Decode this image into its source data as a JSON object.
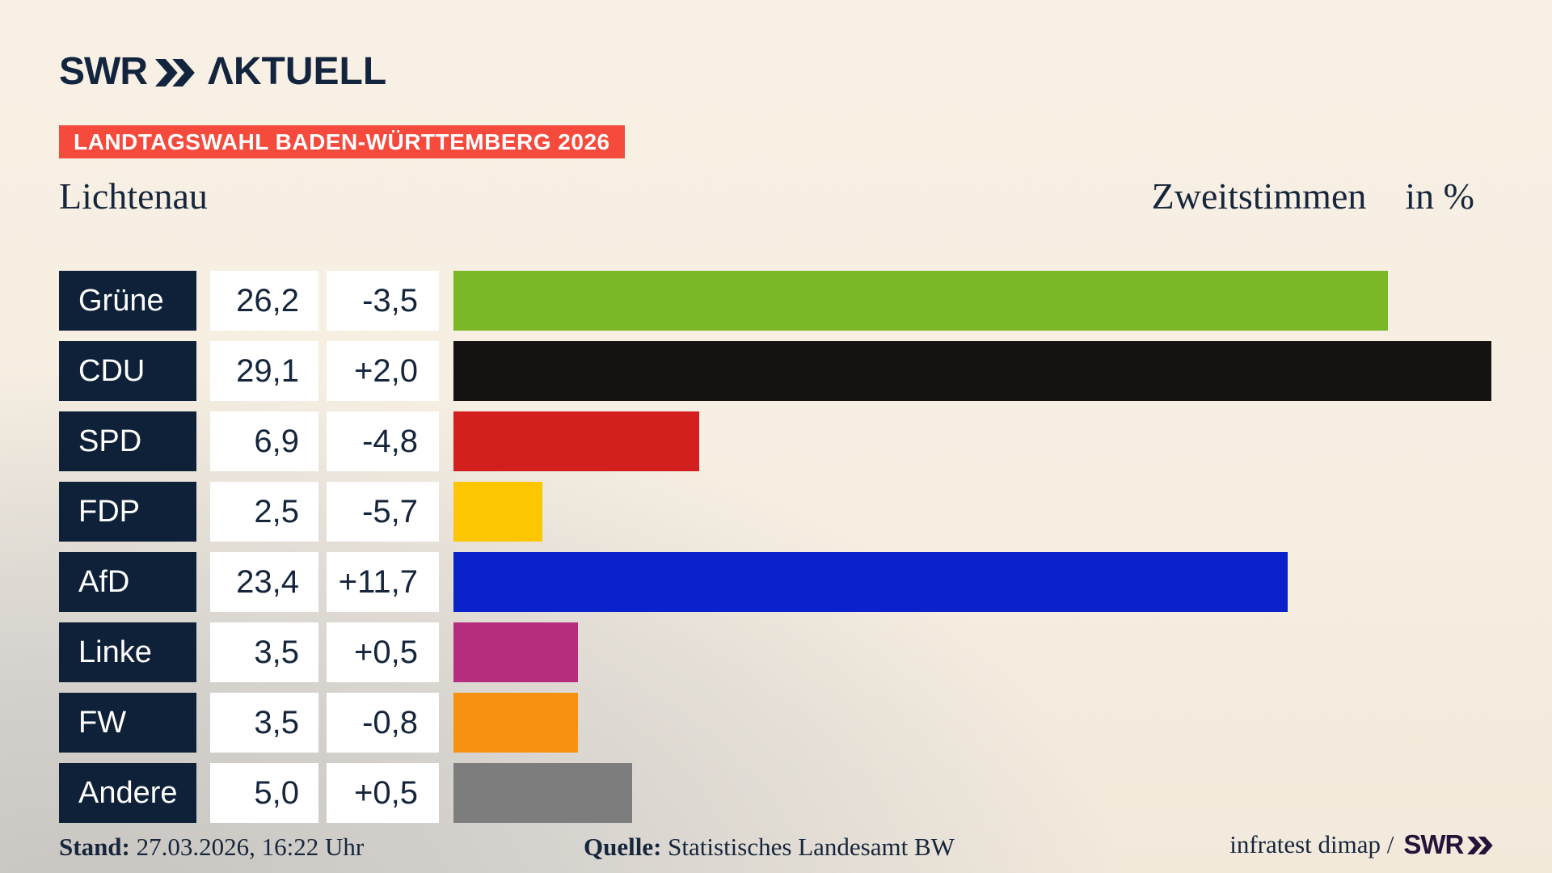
{
  "brand": {
    "logo_text": "SWR",
    "logo_suffix": "ΛKTUELL",
    "logo_color": "#13253e"
  },
  "banner": {
    "label": "LANDTAGSWAHL BADEN-WÜRTTEMBERG 2026",
    "bg_color": "#f54a3c",
    "text_color": "#ffffff"
  },
  "title": {
    "region": "Lichtenau",
    "measure": "Zweitstimmen",
    "unit": "in %"
  },
  "chart_data": {
    "type": "bar",
    "orientation": "horizontal",
    "title": "Zweitstimmen in % — Lichtenau, Landtagswahl Baden-Württemberg 2026",
    "unit": "%",
    "xlim": [
      0,
      29.1
    ],
    "grid": false,
    "legend": "none",
    "categories": [
      "Grüne",
      "CDU",
      "SPD",
      "FDP",
      "AfD",
      "Linke",
      "FW",
      "Andere"
    ],
    "values": [
      26.2,
      29.1,
      6.9,
      2.5,
      23.4,
      3.5,
      3.5,
      5.0
    ],
    "value_labels": [
      "26,2",
      "29,1",
      "6,9",
      "2,5",
      "23,4",
      "3,5",
      "3,5",
      "5,0"
    ],
    "change_labels": [
      "-3,5",
      "+2,0",
      "-4,8",
      "-5,7",
      "+11,7",
      "+0,5",
      "-0,8",
      "+0,5"
    ],
    "bar_colors": [
      "#7ab828",
      "#141312",
      "#d3201e",
      "#fcc600",
      "#0a21cc",
      "#b72d7e",
      "#f89111",
      "#7d7d7d"
    ],
    "label_box_color": "#0e2138",
    "value_box_color": "#ffffff"
  },
  "footer": {
    "stand_label": "Stand:",
    "stand_value": "27.03.2026, 16:22 Uhr",
    "source_label": "Quelle:",
    "source_value": "Statistisches Landesamt BW",
    "credit_text": "infratest dimap /",
    "credit_logo_text": "SWR",
    "credit_logo_color": "#261339"
  }
}
